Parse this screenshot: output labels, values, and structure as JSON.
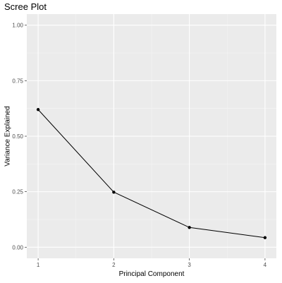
{
  "chart_data": {
    "type": "line",
    "title": "Scree Plot",
    "xlabel": "Principal Component",
    "ylabel": "Variance Explained",
    "x": [
      1,
      2,
      3,
      4
    ],
    "values": [
      0.62,
      0.248,
      0.089,
      0.043
    ],
    "xlim": [
      0.85,
      4.15
    ],
    "ylim": [
      -0.05,
      1.05
    ],
    "x_ticks": [
      1,
      2,
      3,
      4
    ],
    "x_tick_labels": [
      "1",
      "2",
      "3",
      "4"
    ],
    "y_ticks": [
      0,
      0.25,
      0.5,
      0.75,
      1.0
    ],
    "y_tick_labels": [
      "0.00",
      "0.25",
      "0.50",
      "0.75",
      "1.00"
    ],
    "grid": true,
    "colors": {
      "panel_background": "#ebebeb",
      "grid_major": "#ffffff",
      "grid_minor": "#f5f5f5",
      "line": "#000000",
      "point": "#000000"
    }
  }
}
